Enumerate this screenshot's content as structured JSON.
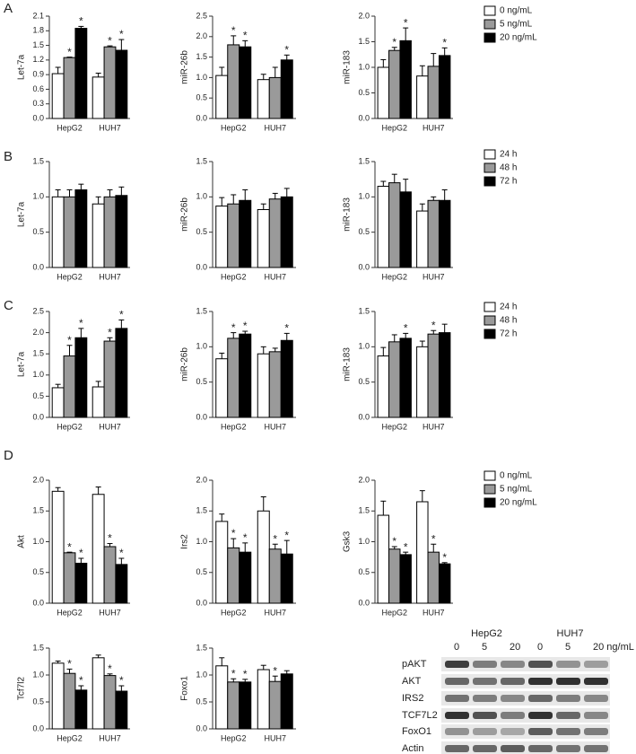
{
  "panels": [
    {
      "label": "A",
      "legend": [
        {
          "name": "0 ng/mL",
          "color": "#ffffff"
        },
        {
          "name": "5 ng/mL",
          "color": "#9a9a9a"
        },
        {
          "name": "20 ng/mL",
          "color": "#000000"
        }
      ]
    },
    {
      "label": "B",
      "legend": [
        {
          "name": "24 h",
          "color": "#ffffff"
        },
        {
          "name": "48 h",
          "color": "#9a9a9a"
        },
        {
          "name": "72 h",
          "color": "#000000"
        }
      ]
    },
    {
      "label": "C",
      "legend": [
        {
          "name": "24 h",
          "color": "#ffffff"
        },
        {
          "name": "48 h",
          "color": "#9a9a9a"
        },
        {
          "name": "72 h",
          "color": "#000000"
        }
      ]
    },
    {
      "label": "D",
      "legend": [
        {
          "name": "0 ng/mL",
          "color": "#ffffff"
        },
        {
          "name": "5 ng/mL",
          "color": "#9a9a9a"
        },
        {
          "name": "20 ng/mL",
          "color": "#000000"
        }
      ]
    }
  ],
  "chart_data": [
    {
      "type": "bar",
      "ylabel": "Let-7a",
      "categories": [
        "HepG2",
        "HUH7"
      ],
      "ylim": [
        0,
        2.1
      ],
      "yticks": [
        {
          "value": 0,
          "label": "0.0"
        },
        0.3,
        0.6,
        0.9,
        1.2,
        1.5,
        1.8,
        2.1
      ],
      "series": [
        {
          "values": [
            0.92,
            0.85
          ],
          "errors": [
            0.13,
            0.08
          ],
          "stars": [
            null,
            null
          ]
        },
        {
          "values": [
            1.25,
            1.47
          ],
          "errors": [
            0.01,
            0.02
          ],
          "stars": [
            "*",
            "*"
          ]
        },
        {
          "values": [
            1.85,
            1.4
          ],
          "errors": [
            0.04,
            0.22
          ],
          "stars": [
            "*",
            "*"
          ]
        }
      ]
    },
    {
      "type": "bar",
      "ylabel": "miR-26b",
      "categories": [
        "HepG2",
        "HUH7"
      ],
      "ylim": [
        0,
        2.5
      ],
      "yticks": [
        {
          "value": 0,
          "label": "0.0"
        },
        0.5,
        {
          "value": 1,
          "label": "1.0"
        },
        1.5,
        {
          "value": 2,
          "label": "2.0"
        },
        2.5
      ],
      "series": [
        {
          "values": [
            1.05,
            0.95
          ],
          "errors": [
            0.2,
            0.13
          ],
          "stars": [
            null,
            null
          ]
        },
        {
          "values": [
            1.8,
            1.0
          ],
          "errors": [
            0.22,
            0.25
          ],
          "stars": [
            "*",
            null
          ]
        },
        {
          "values": [
            1.75,
            1.43
          ],
          "errors": [
            0.15,
            0.12
          ],
          "stars": [
            "*",
            "*"
          ]
        }
      ]
    },
    {
      "type": "bar",
      "ylabel": "miR-183",
      "categories": [
        "HepG2",
        "HUH7"
      ],
      "ylim": [
        0,
        2
      ],
      "yticks": [
        {
          "value": 0,
          "label": "0.0"
        },
        0.5,
        {
          "value": 1,
          "label": "1.0"
        },
        1.5,
        {
          "value": 2,
          "label": "2.0"
        }
      ],
      "series": [
        {
          "values": [
            1.0,
            0.83
          ],
          "errors": [
            0.15,
            0.2
          ],
          "stars": [
            null,
            null
          ]
        },
        {
          "values": [
            1.33,
            1.02
          ],
          "errors": [
            0.06,
            0.25
          ],
          "stars": [
            "*",
            null
          ]
        },
        {
          "values": [
            1.52,
            1.23
          ],
          "errors": [
            0.25,
            0.15
          ],
          "stars": [
            "*",
            "*"
          ]
        }
      ]
    },
    {
      "type": "bar",
      "ylabel": "Let-7a",
      "categories": [
        "HepG2",
        "HUH7"
      ],
      "ylim": [
        0,
        1.5
      ],
      "yticks": [
        {
          "value": 0,
          "label": "0.0"
        },
        0.5,
        {
          "value": 1,
          "label": "1.0"
        },
        1.5
      ],
      "series": [
        {
          "values": [
            1.0,
            0.9
          ],
          "errors": [
            0.1,
            0.1
          ],
          "stars": [
            null,
            null
          ]
        },
        {
          "values": [
            1.0,
            1.0
          ],
          "errors": [
            0.1,
            0.1
          ],
          "stars": [
            null,
            null
          ]
        },
        {
          "values": [
            1.1,
            1.02
          ],
          "errors": [
            0.08,
            0.12
          ],
          "stars": [
            null,
            null
          ]
        }
      ]
    },
    {
      "type": "bar",
      "ylabel": "miR-26b",
      "categories": [
        "HepG2",
        "HUH7"
      ],
      "ylim": [
        0,
        1.5
      ],
      "yticks": [
        {
          "value": 0,
          "label": "0.0"
        },
        0.5,
        {
          "value": 1,
          "label": "1.0"
        },
        1.5
      ],
      "series": [
        {
          "values": [
            0.87,
            0.82
          ],
          "errors": [
            0.12,
            0.08
          ],
          "stars": [
            null,
            null
          ]
        },
        {
          "values": [
            0.9,
            0.97
          ],
          "errors": [
            0.13,
            0.08
          ],
          "stars": [
            null,
            null
          ]
        },
        {
          "values": [
            0.95,
            1.0
          ],
          "errors": [
            0.15,
            0.12
          ],
          "stars": [
            null,
            null
          ]
        }
      ]
    },
    {
      "type": "bar",
      "ylabel": "miR-183",
      "categories": [
        "HepG2",
        "HUH7"
      ],
      "ylim": [
        0,
        1.5
      ],
      "yticks": [
        {
          "value": 0,
          "label": "0.0"
        },
        0.5,
        {
          "value": 1,
          "label": "1.0"
        },
        1.5
      ],
      "series": [
        {
          "values": [
            1.15,
            0.8
          ],
          "errors": [
            0.07,
            0.1
          ],
          "stars": [
            null,
            null
          ]
        },
        {
          "values": [
            1.2,
            0.95
          ],
          "errors": [
            0.12,
            0.05
          ],
          "stars": [
            null,
            null
          ]
        },
        {
          "values": [
            1.07,
            0.95
          ],
          "errors": [
            0.18,
            0.15
          ],
          "stars": [
            null,
            null
          ]
        }
      ]
    },
    {
      "type": "bar",
      "ylabel": "Let-7a",
      "categories": [
        "HepG2",
        "HUH7"
      ],
      "ylim": [
        0,
        2.5
      ],
      "yticks": [
        {
          "value": 0,
          "label": "0.0"
        },
        0.5,
        {
          "value": 1,
          "label": "1.0"
        },
        1.5,
        {
          "value": 2,
          "label": "2.0"
        },
        2.5
      ],
      "series": [
        {
          "values": [
            0.7,
            0.72
          ],
          "errors": [
            0.08,
            0.13
          ],
          "stars": [
            null,
            null
          ]
        },
        {
          "values": [
            1.45,
            1.8
          ],
          "errors": [
            0.25,
            0.08
          ],
          "stars": [
            "*",
            "*"
          ]
        },
        {
          "values": [
            1.88,
            2.1
          ],
          "errors": [
            0.22,
            0.2
          ],
          "stars": [
            "*",
            "*"
          ]
        }
      ]
    },
    {
      "type": "bar",
      "ylabel": "miR-26b",
      "categories": [
        "HepG2",
        "HUH7"
      ],
      "ylim": [
        0,
        1.5
      ],
      "yticks": [
        {
          "value": 0,
          "label": "0.0"
        },
        0.5,
        {
          "value": 1,
          "label": "1.0"
        },
        1.5
      ],
      "series": [
        {
          "values": [
            0.83,
            0.9
          ],
          "errors": [
            0.08,
            0.1
          ],
          "stars": [
            null,
            null
          ]
        },
        {
          "values": [
            1.12,
            0.93
          ],
          "errors": [
            0.08,
            0.05
          ],
          "stars": [
            "*",
            null
          ]
        },
        {
          "values": [
            1.18,
            1.09
          ],
          "errors": [
            0.04,
            0.1
          ],
          "stars": [
            "*",
            "*"
          ]
        }
      ]
    },
    {
      "type": "bar",
      "ylabel": "miR-183",
      "categories": [
        "HepG2",
        "HUH7"
      ],
      "ylim": [
        0,
        1.5
      ],
      "yticks": [
        {
          "value": 0,
          "label": "0.0"
        },
        0.5,
        {
          "value": 1,
          "label": "1.0"
        },
        1.5
      ],
      "series": [
        {
          "values": [
            0.87,
            1.0
          ],
          "errors": [
            0.12,
            0.08
          ],
          "stars": [
            null,
            null
          ]
        },
        {
          "values": [
            1.07,
            1.18
          ],
          "errors": [
            0.1,
            0.05
          ],
          "stars": [
            null,
            "*"
          ]
        },
        {
          "values": [
            1.12,
            1.2
          ],
          "errors": [
            0.07,
            0.12
          ],
          "stars": [
            "*",
            null
          ]
        }
      ]
    },
    {
      "type": "bar",
      "ylabel": "Akt",
      "categories": [
        "HepG2",
        "HUH7"
      ],
      "ylim": [
        0,
        2
      ],
      "yticks": [
        {
          "value": 0,
          "label": "0.0"
        },
        0.5,
        {
          "value": 1,
          "label": "1.0"
        },
        1.5,
        {
          "value": 2,
          "label": "2.0"
        }
      ],
      "series": [
        {
          "values": [
            1.82,
            1.77
          ],
          "errors": [
            0.06,
            0.12
          ],
          "stars": [
            null,
            null
          ]
        },
        {
          "values": [
            0.82,
            0.92
          ],
          "errors": [
            0.01,
            0.05
          ],
          "stars": [
            "*",
            "*"
          ]
        },
        {
          "values": [
            0.65,
            0.63
          ],
          "errors": [
            0.08,
            0.1
          ],
          "stars": [
            "*",
            "*"
          ]
        }
      ]
    },
    {
      "type": "bar",
      "ylabel": "Irs2",
      "categories": [
        "HepG2",
        "HUH7"
      ],
      "ylim": [
        0,
        2
      ],
      "yticks": [
        {
          "value": 0,
          "label": "0.0"
        },
        0.5,
        {
          "value": 1,
          "label": "1.0"
        },
        1.5,
        {
          "value": 2,
          "label": "2.0"
        }
      ],
      "series": [
        {
          "values": [
            1.33,
            1.5
          ],
          "errors": [
            0.12,
            0.23
          ],
          "stars": [
            null,
            null
          ]
        },
        {
          "values": [
            0.9,
            0.88
          ],
          "errors": [
            0.15,
            0.08
          ],
          "stars": [
            "*",
            "*"
          ]
        },
        {
          "values": [
            0.83,
            0.8
          ],
          "errors": [
            0.15,
            0.22
          ],
          "stars": [
            "*",
            "*"
          ]
        }
      ]
    },
    {
      "type": "bar",
      "ylabel": "Gsk3",
      "categories": [
        "HepG2",
        "HUH7"
      ],
      "ylim": [
        0,
        2
      ],
      "yticks": [
        {
          "value": 0,
          "label": "0.0"
        },
        0.5,
        {
          "value": 1,
          "label": "1.0"
        },
        1.5,
        {
          "value": 2,
          "label": "2.0"
        }
      ],
      "series": [
        {
          "values": [
            1.43,
            1.65
          ],
          "errors": [
            0.23,
            0.18
          ],
          "stars": [
            null,
            null
          ]
        },
        {
          "values": [
            0.88,
            0.83
          ],
          "errors": [
            0.04,
            0.13
          ],
          "stars": [
            "*",
            "*"
          ]
        },
        {
          "values": [
            0.79,
            0.64
          ],
          "errors": [
            0.04,
            0.02
          ],
          "stars": [
            "*",
            "*"
          ]
        }
      ]
    },
    {
      "type": "bar",
      "ylabel": "Tcf7l2",
      "categories": [
        "HepG2",
        "HUH7"
      ],
      "ylim": [
        0,
        1.5
      ],
      "yticks": [
        {
          "value": 0,
          "label": "0.0"
        },
        0.5,
        {
          "value": 1,
          "label": "1.0"
        },
        1.5
      ],
      "series": [
        {
          "values": [
            1.22,
            1.32
          ],
          "errors": [
            0.04,
            0.05
          ],
          "stars": [
            null,
            null
          ]
        },
        {
          "values": [
            1.03,
            0.99
          ],
          "errors": [
            0.08,
            0.03
          ],
          "stars": [
            "*",
            "*"
          ]
        },
        {
          "values": [
            0.72,
            0.7
          ],
          "errors": [
            0.08,
            0.1
          ],
          "stars": [
            "*",
            "*"
          ]
        }
      ]
    },
    {
      "type": "bar",
      "ylabel": "Foxo1",
      "categories": [
        "HepG2",
        "HUH7"
      ],
      "ylim": [
        0,
        1.5
      ],
      "yticks": [
        {
          "value": 0,
          "label": "0.0"
        },
        0.5,
        {
          "value": 1,
          "label": "1.0"
        },
        1.5
      ],
      "series": [
        {
          "values": [
            1.17,
            1.1
          ],
          "errors": [
            0.15,
            0.08
          ],
          "stars": [
            null,
            null
          ]
        },
        {
          "values": [
            0.87,
            0.88
          ],
          "errors": [
            0.06,
            0.1
          ],
          "stars": [
            "*",
            "*"
          ]
        },
        {
          "values": [
            0.87,
            1.02
          ],
          "errors": [
            0.05,
            0.06
          ],
          "stars": [
            "*",
            null
          ]
        }
      ]
    }
  ],
  "blot": {
    "groups": [
      "HepG2",
      "HUH7"
    ],
    "lanes": [
      "0",
      "5",
      "20",
      "0",
      "5",
      "20 ng/mL"
    ],
    "rows": [
      "pAKT",
      "AKT",
      "IRS2",
      "TCF7L2",
      "FoxO1",
      "Actin"
    ]
  }
}
